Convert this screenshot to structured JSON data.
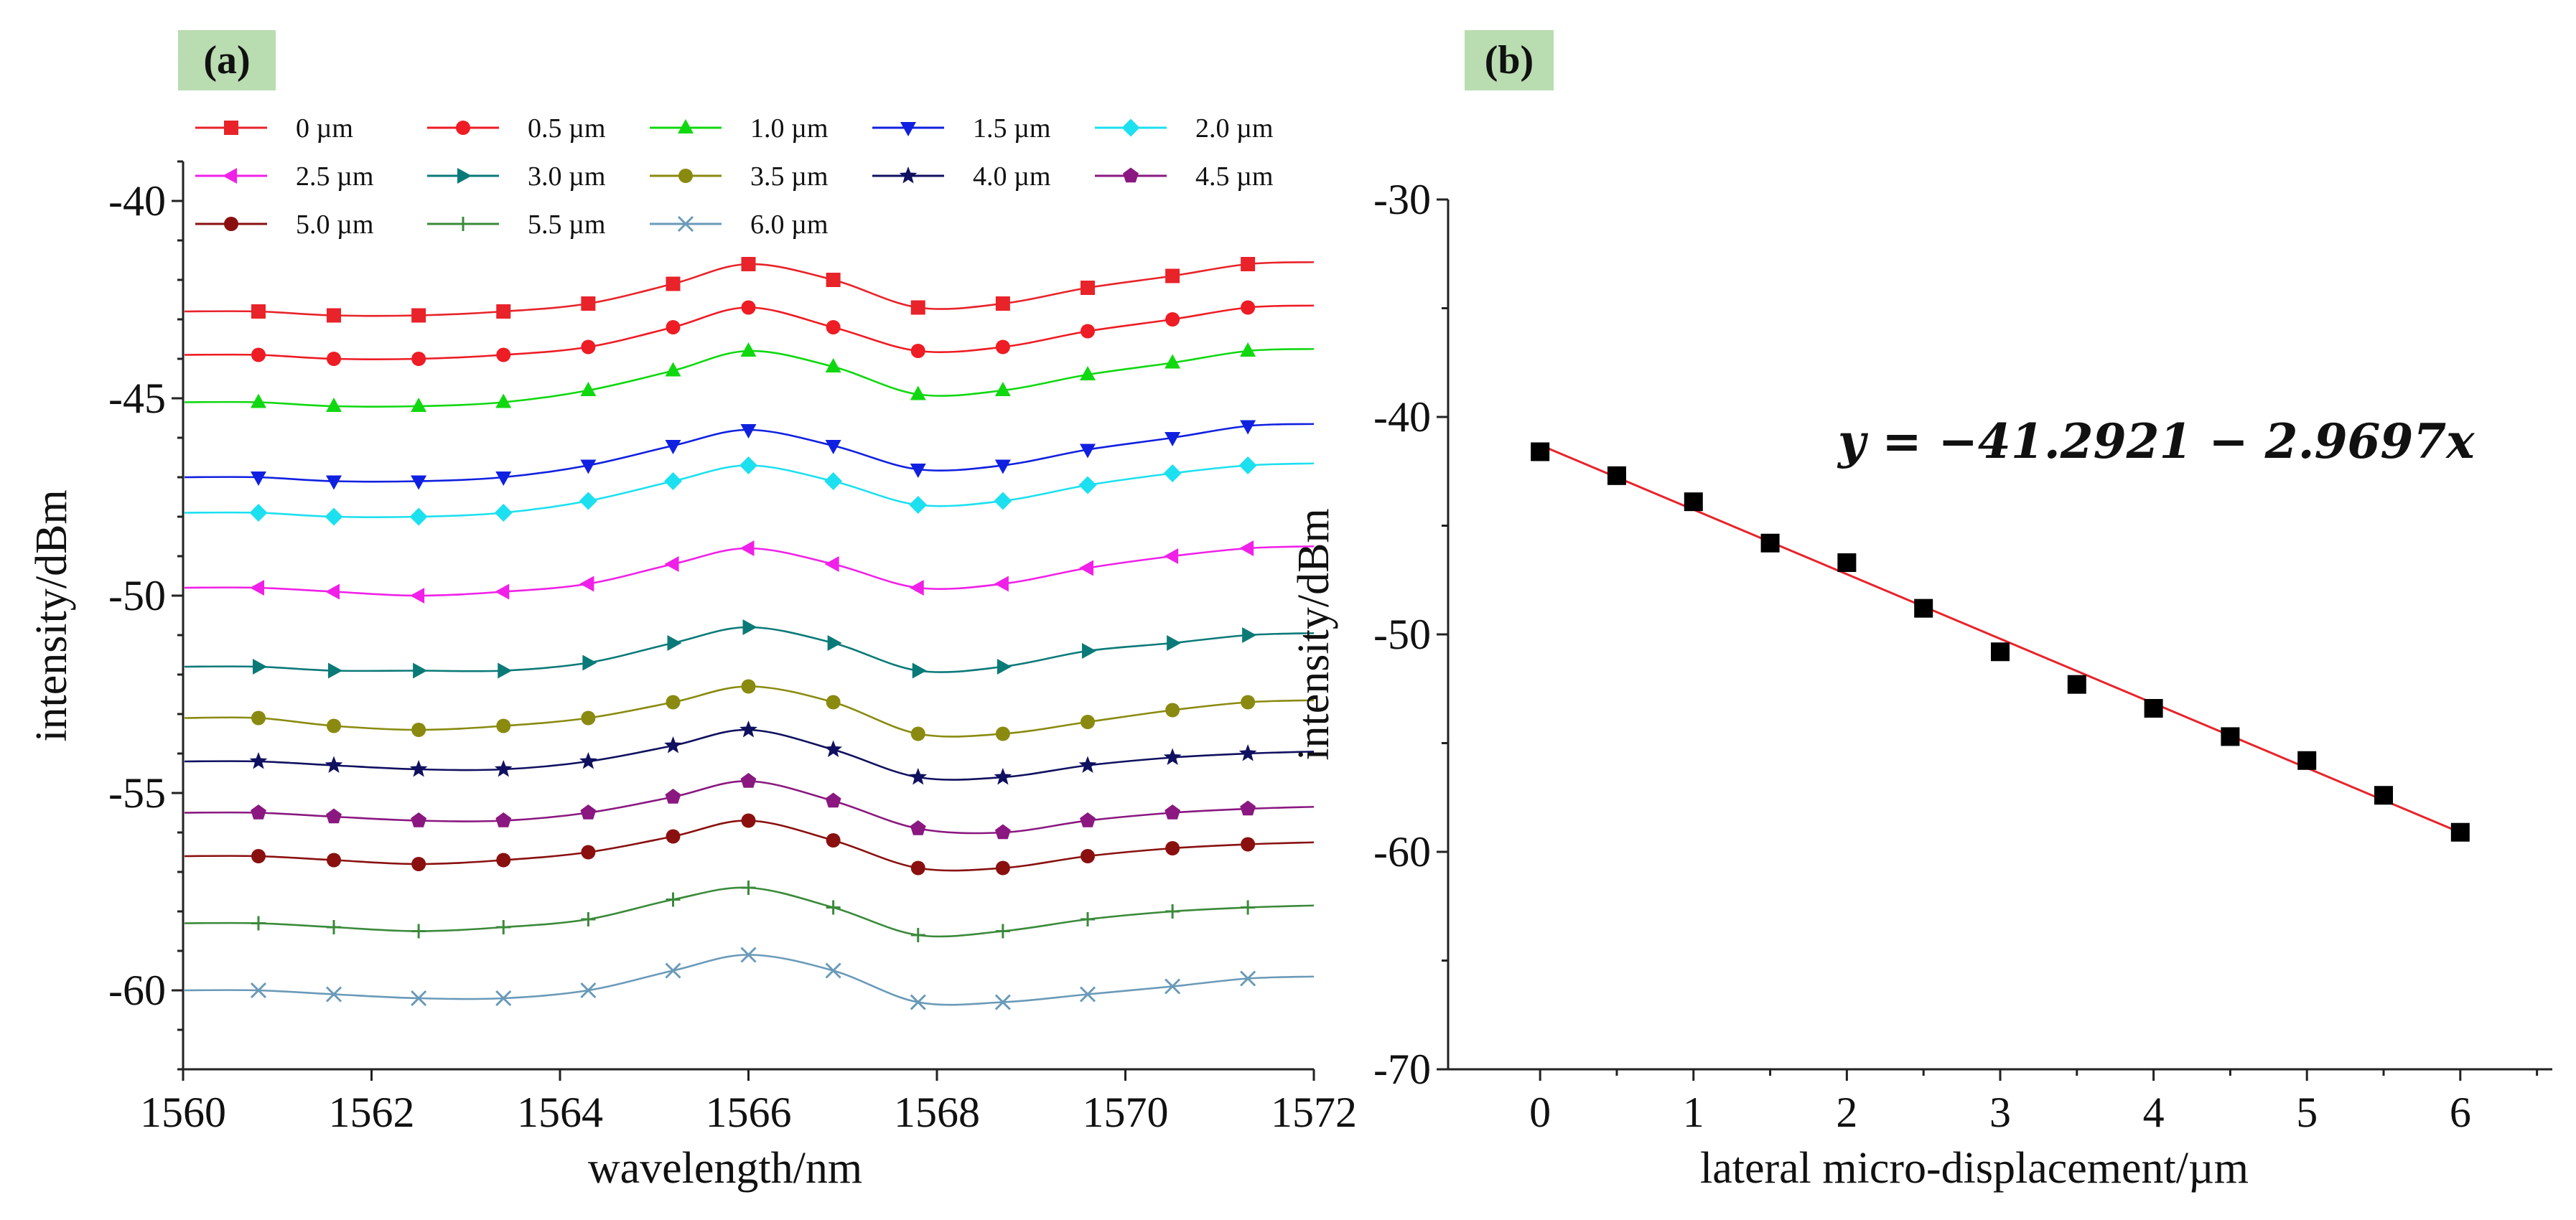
{
  "panels": {
    "a": {
      "label": "(a)"
    },
    "b": {
      "label": "(b)"
    }
  },
  "chart_data": [
    {
      "type": "line",
      "panel": "a",
      "title": "",
      "xlabel": "wavelength/nm",
      "ylabel": "intensity/dBm",
      "xlim": [
        1560,
        1572
      ],
      "ylim": [
        -62,
        -39
      ],
      "xticks": [
        "1560",
        "1562",
        "1564",
        "1566",
        "1568",
        "1570",
        "1572"
      ],
      "yticks": [
        "-40",
        "-45",
        "-50",
        "-55",
        "-60"
      ],
      "x": [
        1560.8,
        1561.6,
        1562.5,
        1563.4,
        1564.3,
        1565.2,
        1566.0,
        1566.9,
        1567.8,
        1568.7,
        1569.6,
        1570.5,
        1571.3
      ],
      "series": [
        {
          "name": "0 µm",
          "color": "#e8232a",
          "marker": "square",
          "values": [
            -42.8,
            -42.9,
            -42.9,
            -42.8,
            -42.6,
            -42.1,
            -41.6,
            -42.0,
            -42.7,
            -42.6,
            -42.2,
            -41.9,
            -41.6
          ]
        },
        {
          "name": "0.5 µm",
          "color": "#ee1c24",
          "marker": "circle",
          "values": [
            -43.9,
            -44.0,
            -44.0,
            -43.9,
            -43.7,
            -43.2,
            -42.7,
            -43.2,
            -43.8,
            -43.7,
            -43.3,
            -43.0,
            -42.7
          ]
        },
        {
          "name": "1.0 µm",
          "color": "#10d810",
          "marker": "triangle-up",
          "values": [
            -45.1,
            -45.2,
            -45.2,
            -45.1,
            -44.8,
            -44.3,
            -43.8,
            -44.2,
            -44.9,
            -44.8,
            -44.4,
            -44.1,
            -43.8
          ]
        },
        {
          "name": "1.5 µm",
          "color": "#1020e0",
          "marker": "triangle-down",
          "values": [
            -47.0,
            -47.1,
            -47.1,
            -47.0,
            -46.7,
            -46.2,
            -45.8,
            -46.2,
            -46.8,
            -46.7,
            -46.3,
            -46.0,
            -45.7
          ]
        },
        {
          "name": "2.0 µm",
          "color": "#1ce0f0",
          "marker": "diamond",
          "values": [
            -47.9,
            -48.0,
            -48.0,
            -47.9,
            -47.6,
            -47.1,
            -46.7,
            -47.1,
            -47.7,
            -47.6,
            -47.2,
            -46.9,
            -46.7
          ]
        },
        {
          "name": "2.5 µm",
          "color": "#f020e8",
          "marker": "triangle-left",
          "values": [
            -49.8,
            -49.9,
            -50.0,
            -49.9,
            -49.7,
            -49.2,
            -48.8,
            -49.2,
            -49.8,
            -49.7,
            -49.3,
            -49.0,
            -48.8
          ]
        },
        {
          "name": "3.0 µm",
          "color": "#0a7a78",
          "marker": "triangle-right",
          "values": [
            -51.8,
            -51.9,
            -51.9,
            -51.9,
            -51.7,
            -51.2,
            -50.8,
            -51.2,
            -51.9,
            -51.8,
            -51.4,
            -51.2,
            -51.0
          ]
        },
        {
          "name": "3.5 µm",
          "color": "#8a8a10",
          "marker": "circle",
          "values": [
            -53.1,
            -53.3,
            -53.4,
            -53.3,
            -53.1,
            -52.7,
            -52.3,
            -52.7,
            -53.5,
            -53.5,
            -53.2,
            -52.9,
            -52.7
          ]
        },
        {
          "name": "4.0 µm",
          "color": "#101060",
          "marker": "star",
          "values": [
            -54.2,
            -54.3,
            -54.4,
            -54.4,
            -54.2,
            -53.8,
            -53.4,
            -53.9,
            -54.6,
            -54.6,
            -54.3,
            -54.1,
            -54.0
          ]
        },
        {
          "name": "4.5 µm",
          "color": "#8a1880",
          "marker": "pentagon",
          "values": [
            -55.5,
            -55.6,
            -55.7,
            -55.7,
            -55.5,
            -55.1,
            -54.7,
            -55.2,
            -55.9,
            -56.0,
            -55.7,
            -55.5,
            -55.4
          ]
        },
        {
          "name": "5.0 µm",
          "color": "#8a1010",
          "marker": "circle",
          "values": [
            -56.6,
            -56.7,
            -56.8,
            -56.7,
            -56.5,
            -56.1,
            -55.7,
            -56.2,
            -56.9,
            -56.9,
            -56.6,
            -56.4,
            -56.3
          ]
        },
        {
          "name": "5.5 µm",
          "color": "#3a8a3a",
          "marker": "plus",
          "values": [
            -58.3,
            -58.4,
            -58.5,
            -58.4,
            -58.2,
            -57.7,
            -57.4,
            -57.9,
            -58.6,
            -58.5,
            -58.2,
            -58.0,
            -57.9
          ]
        },
        {
          "name": "6.0 µm",
          "color": "#6a9ab8",
          "marker": "cross",
          "values": [
            -60.0,
            -60.1,
            -60.2,
            -60.2,
            -60.0,
            -59.5,
            -59.1,
            -59.5,
            -60.3,
            -60.3,
            -60.1,
            -59.9,
            -59.7
          ]
        }
      ]
    },
    {
      "type": "scatter",
      "panel": "b",
      "title": "",
      "xlabel": "lateral  micro-displacement/µm",
      "ylabel": "intensity/dBm",
      "xlim": [
        -0.6,
        6.6
      ],
      "ylim": [
        -70,
        -30
      ],
      "xticks": [
        "0",
        "1",
        "2",
        "3",
        "4",
        "5",
        "6"
      ],
      "yticks": [
        "-30",
        "-40",
        "-50",
        "-60",
        "-70"
      ],
      "x": [
        0,
        0.5,
        1.0,
        1.5,
        2.0,
        2.5,
        3.0,
        3.5,
        4.0,
        4.5,
        5.0,
        5.5,
        6.0
      ],
      "values": [
        -41.6,
        -42.7,
        -43.9,
        -45.8,
        -46.7,
        -48.8,
        -50.8,
        -52.3,
        -53.4,
        -54.7,
        -55.8,
        -57.4,
        -59.1
      ],
      "fit": {
        "equation": "y = −41.2921 − 2.9697x",
        "intercept": -41.2921,
        "slope": -2.9697,
        "color": "#e8232a"
      },
      "marker_color": "#000000"
    }
  ]
}
